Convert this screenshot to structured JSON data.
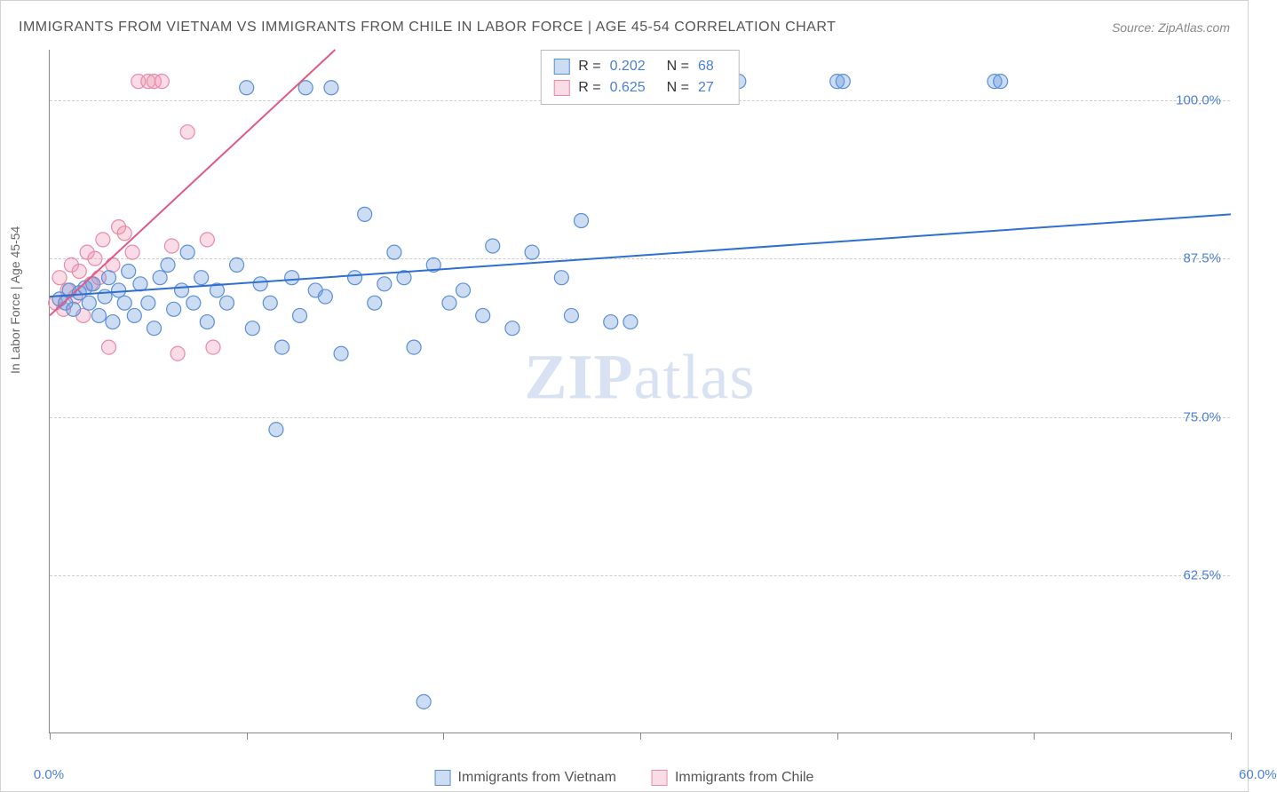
{
  "header": {
    "title": "IMMIGRANTS FROM VIETNAM VS IMMIGRANTS FROM CHILE IN LABOR FORCE | AGE 45-54 CORRELATION CHART",
    "source_prefix": "Source: ",
    "source": "ZipAtlas.com"
  },
  "chart": {
    "type": "scatter",
    "y_axis_label": "In Labor Force | Age 45-54",
    "xlim": [
      0,
      60
    ],
    "ylim": [
      50,
      104
    ],
    "x_ticks_minor": [
      0,
      10,
      20,
      30,
      40,
      50,
      60
    ],
    "x_tick_labels": {
      "0": "0.0%",
      "60": "60.0%"
    },
    "y_ticks": [
      62.5,
      75.0,
      87.5,
      100.0
    ],
    "y_tick_labels": [
      "62.5%",
      "75.0%",
      "87.5%",
      "100.0%"
    ],
    "grid_color": "#cccccc",
    "background_color": "#ffffff",
    "axis_color": "#888888",
    "watermark": "ZIPatlas",
    "watermark_color": "#d8e2f2",
    "series": {
      "vietnam": {
        "label": "Immigrants from Vietnam",
        "color_fill": "rgba(106,155,222,0.35)",
        "color_stroke": "#5b8fd6",
        "marker_radius": 8,
        "R": "0.202",
        "N": "68",
        "trend": {
          "x1": 0,
          "y1": 84.5,
          "x2": 60,
          "y2": 91.0,
          "color": "#2f6fd0",
          "width": 2
        },
        "points": [
          [
            0.5,
            84.3
          ],
          [
            0.8,
            84.0
          ],
          [
            1.0,
            85.0
          ],
          [
            1.2,
            83.5
          ],
          [
            1.5,
            84.8
          ],
          [
            1.8,
            85.2
          ],
          [
            2.0,
            84.0
          ],
          [
            2.2,
            85.5
          ],
          [
            2.5,
            83.0
          ],
          [
            2.8,
            84.5
          ],
          [
            3.0,
            86.0
          ],
          [
            3.2,
            82.5
          ],
          [
            3.5,
            85.0
          ],
          [
            3.8,
            84.0
          ],
          [
            4.0,
            86.5
          ],
          [
            4.3,
            83.0
          ],
          [
            4.6,
            85.5
          ],
          [
            5.0,
            84.0
          ],
          [
            5.3,
            82.0
          ],
          [
            5.6,
            86.0
          ],
          [
            6.0,
            87.0
          ],
          [
            6.3,
            83.5
          ],
          [
            6.7,
            85.0
          ],
          [
            7.0,
            88.0
          ],
          [
            7.3,
            84.0
          ],
          [
            7.7,
            86.0
          ],
          [
            8.0,
            82.5
          ],
          [
            8.5,
            85.0
          ],
          [
            9.0,
            84.0
          ],
          [
            9.5,
            87.0
          ],
          [
            10.0,
            101.0
          ],
          [
            10.3,
            82.0
          ],
          [
            10.7,
            85.5
          ],
          [
            11.2,
            84.0
          ],
          [
            11.5,
            74.0
          ],
          [
            11.8,
            80.5
          ],
          [
            12.3,
            86.0
          ],
          [
            12.7,
            83.0
          ],
          [
            13.0,
            101.0
          ],
          [
            13.5,
            85.0
          ],
          [
            14.0,
            84.5
          ],
          [
            14.3,
            101.0
          ],
          [
            14.8,
            80.0
          ],
          [
            15.5,
            86.0
          ],
          [
            16.0,
            91.0
          ],
          [
            16.5,
            84.0
          ],
          [
            17.0,
            85.5
          ],
          [
            17.5,
            88.0
          ],
          [
            18.0,
            86.0
          ],
          [
            18.5,
            80.5
          ],
          [
            19.0,
            52.5
          ],
          [
            19.5,
            87.0
          ],
          [
            20.3,
            84.0
          ],
          [
            21.0,
            85.0
          ],
          [
            22.0,
            83.0
          ],
          [
            22.5,
            88.5
          ],
          [
            23.5,
            82.0
          ],
          [
            24.5,
            88.0
          ],
          [
            26.0,
            86.0
          ],
          [
            26.5,
            83.0
          ],
          [
            27.0,
            90.5
          ],
          [
            28.5,
            82.5
          ],
          [
            29.5,
            82.5
          ],
          [
            35.0,
            101.5
          ],
          [
            40.0,
            101.5
          ],
          [
            40.3,
            101.5
          ],
          [
            48.0,
            101.5
          ],
          [
            48.3,
            101.5
          ]
        ]
      },
      "chile": {
        "label": "Immigrants from Chile",
        "color_fill": "rgba(239,154,180,0.35)",
        "color_stroke": "#e88aa8",
        "marker_radius": 8,
        "R": "0.625",
        "N": "27",
        "trend": {
          "x1": 0,
          "y1": 83.0,
          "x2": 14.5,
          "y2": 104.0,
          "color": "#e05a85",
          "width": 2
        },
        "points": [
          [
            0.3,
            84.0
          ],
          [
            0.5,
            86.0
          ],
          [
            0.7,
            83.5
          ],
          [
            0.9,
            85.0
          ],
          [
            1.1,
            87.0
          ],
          [
            1.3,
            84.5
          ],
          [
            1.5,
            86.5
          ],
          [
            1.7,
            83.0
          ],
          [
            1.9,
            88.0
          ],
          [
            2.1,
            85.5
          ],
          [
            2.3,
            87.5
          ],
          [
            2.5,
            86.0
          ],
          [
            2.7,
            89.0
          ],
          [
            3.0,
            80.5
          ],
          [
            3.2,
            87.0
          ],
          [
            3.5,
            90.0
          ],
          [
            3.8,
            89.5
          ],
          [
            4.2,
            88.0
          ],
          [
            4.5,
            101.5
          ],
          [
            5.0,
            101.5
          ],
          [
            5.3,
            101.5
          ],
          [
            5.7,
            101.5
          ],
          [
            6.2,
            88.5
          ],
          [
            6.5,
            80.0
          ],
          [
            7.0,
            97.5
          ],
          [
            8.0,
            89.0
          ],
          [
            8.3,
            80.5
          ]
        ]
      }
    }
  },
  "legend_top": {
    "R_label": "R =",
    "N_label": "N ="
  }
}
